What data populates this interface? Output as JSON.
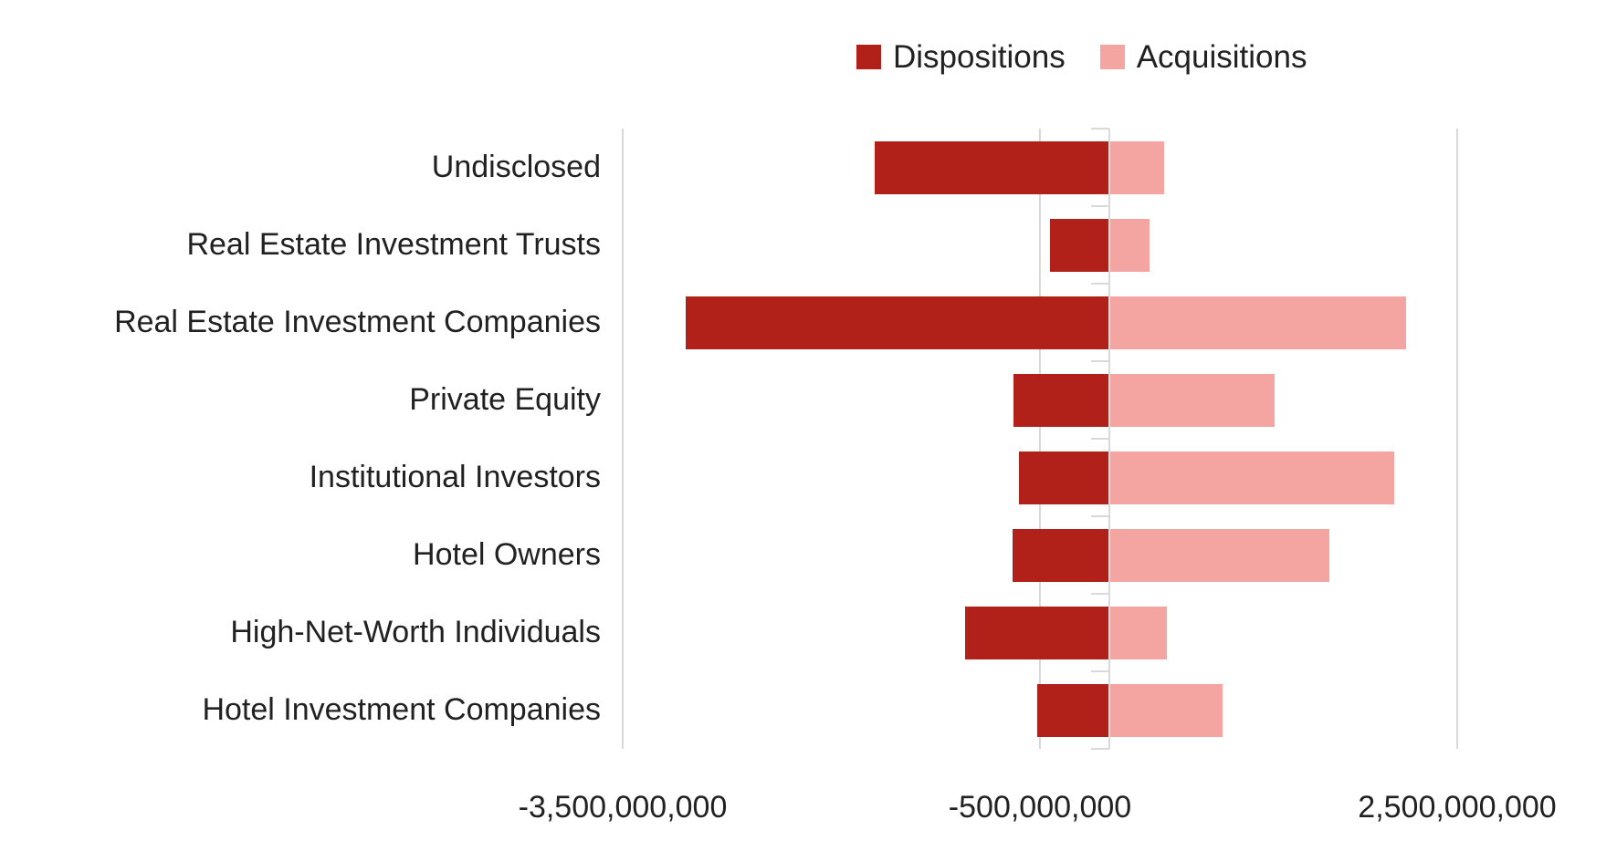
{
  "page": {
    "background": "#ffffff"
  },
  "legend": {
    "items": [
      {
        "label": "Dispositions",
        "color": "#b2201a"
      },
      {
        "label": "Acquisitions",
        "color": "#f5a5a1"
      }
    ]
  },
  "chart_data": {
    "type": "bar",
    "orientation": "horizontal",
    "title": "",
    "categories": [
      "Undisclosed",
      "Real Estate Investment Trusts",
      "Real Estate Investment Companies",
      "Private Equity",
      "Institutional Investors",
      "Hotel Owners",
      "High-Net-Worth Individuals",
      "Hotel Investment Companies"
    ],
    "series": [
      {
        "name": "Dispositions",
        "color": "#b2201a",
        "values": [
          -1690000000,
          -430000000,
          -3050000000,
          -690000000,
          -650000000,
          -700000000,
          -1040000000,
          -520000000
        ]
      },
      {
        "name": "Acquisitions",
        "color": "#f5a5a1",
        "values": [
          390000000,
          290000000,
          2130000000,
          1190000000,
          2050000000,
          1580000000,
          410000000,
          810000000
        ]
      }
    ],
    "xlim": [
      -3500000000,
      2500000000
    ],
    "x_ticks": [
      {
        "value": -3500000000,
        "label": "-3,500,000,000"
      },
      {
        "value": -500000000,
        "label": "-500,000,000"
      },
      {
        "value": 2500000000,
        "label": "2,500,000,000"
      }
    ],
    "grid": "vertical-at-ticks",
    "legend_position": "top-center",
    "axis_colors": {
      "gridline": "#d9d9d9",
      "axis_line": "#d9d9d9",
      "text": "#212121"
    }
  }
}
